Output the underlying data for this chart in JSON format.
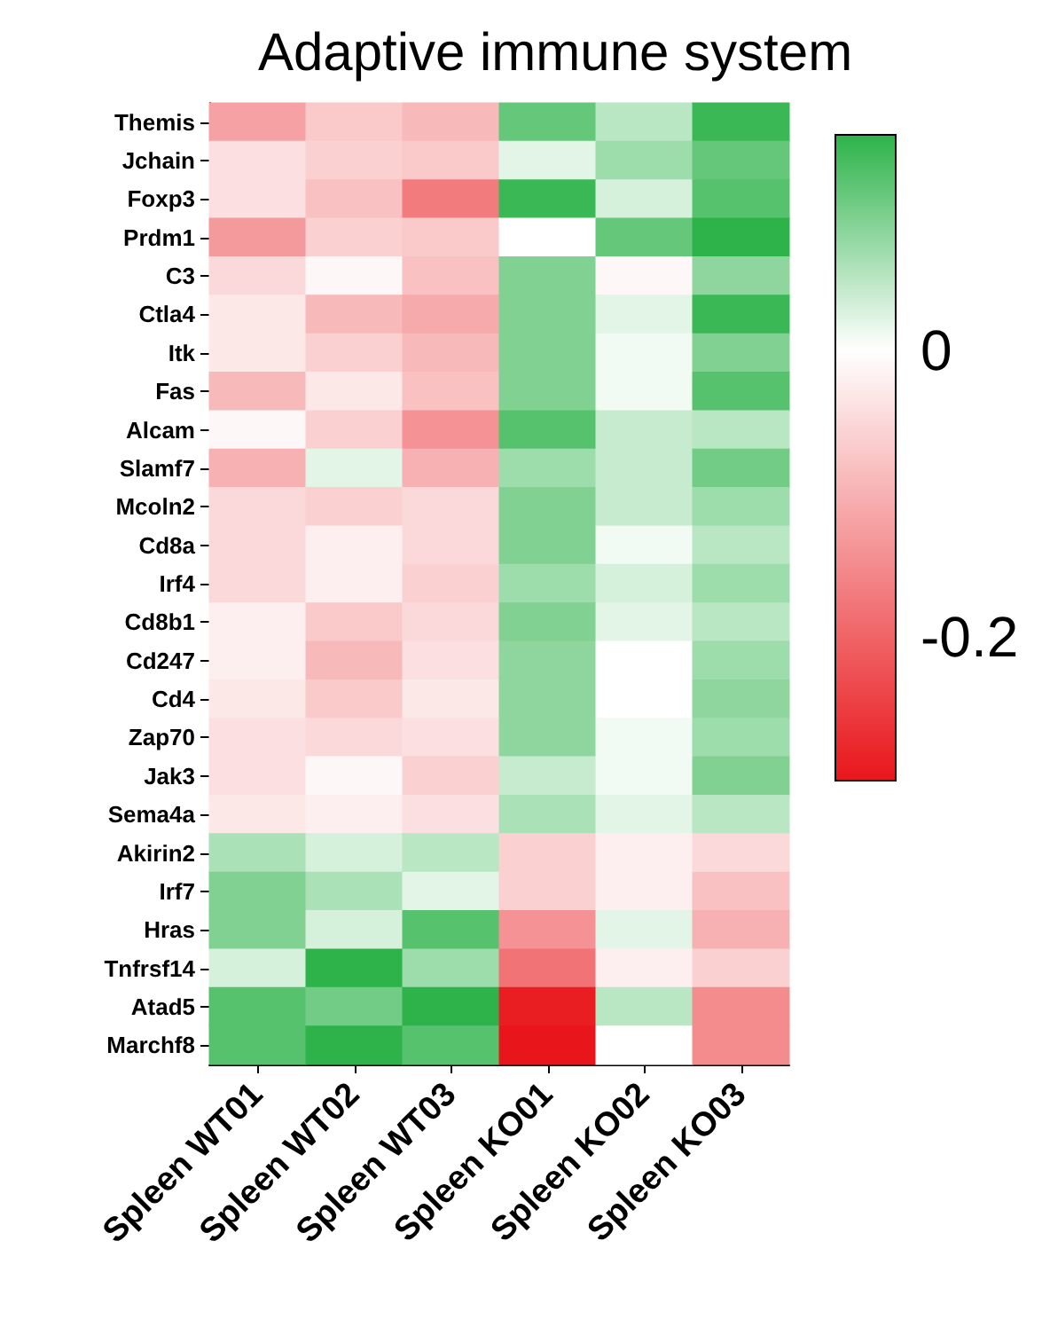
{
  "chart_data": {
    "type": "heatmap",
    "title": "Adaptive immune system",
    "categories": [
      "Spleen WT01",
      "Spleen WT02",
      "Spleen WT03",
      "Spleen KO01",
      "Spleen KO02",
      "Spleen KO03"
    ],
    "y_categories": [
      "Themis",
      "Jchain",
      "Foxp3",
      "Prdm1",
      "C3",
      "Ctla4",
      "Itk",
      "Fas",
      "Alcam",
      "Slamf7",
      "Mcoln2",
      "Cd8a",
      "Irf4",
      "Cd8b1",
      "Cd247",
      "Cd4",
      "Zap70",
      "Jak3",
      "Sema4a",
      "Akirin2",
      "Irf7",
      "Hras",
      "Tnfrsf14",
      "Atad5",
      "Marchf8"
    ],
    "cells": [
      [
        -0.12,
        -0.07,
        -0.09,
        0.11,
        0.05,
        0.14
      ],
      [
        -0.04,
        -0.06,
        -0.07,
        0.02,
        0.07,
        0.11
      ],
      [
        -0.04,
        -0.08,
        -0.17,
        0.14,
        0.03,
        0.12
      ],
      [
        -0.13,
        -0.06,
        -0.07,
        0.0,
        0.11,
        0.15
      ],
      [
        -0.05,
        -0.01,
        -0.08,
        0.09,
        -0.01,
        0.08
      ],
      [
        -0.03,
        -0.09,
        -0.11,
        0.09,
        0.02,
        0.14
      ],
      [
        -0.03,
        -0.06,
        -0.09,
        0.09,
        0.01,
        0.09
      ],
      [
        -0.09,
        -0.03,
        -0.08,
        0.09,
        0.01,
        0.12
      ],
      [
        -0.01,
        -0.06,
        -0.14,
        0.12,
        0.04,
        0.05
      ],
      [
        -0.1,
        0.02,
        -0.1,
        0.07,
        0.04,
        0.1
      ],
      [
        -0.05,
        -0.06,
        -0.05,
        0.09,
        0.04,
        0.07
      ],
      [
        -0.05,
        -0.02,
        -0.05,
        0.09,
        0.01,
        0.05
      ],
      [
        -0.05,
        -0.02,
        -0.06,
        0.07,
        0.03,
        0.07
      ],
      [
        -0.02,
        -0.07,
        -0.05,
        0.09,
        0.02,
        0.05
      ],
      [
        -0.02,
        -0.09,
        -0.04,
        0.08,
        0.0,
        0.07
      ],
      [
        -0.03,
        -0.07,
        -0.03,
        0.08,
        0.0,
        0.08
      ],
      [
        -0.04,
        -0.05,
        -0.04,
        0.08,
        0.01,
        0.07
      ],
      [
        -0.04,
        -0.01,
        -0.06,
        0.04,
        0.01,
        0.09
      ],
      [
        -0.03,
        -0.02,
        -0.04,
        0.06,
        0.02,
        0.05
      ],
      [
        0.06,
        0.03,
        0.05,
        -0.06,
        -0.02,
        -0.05
      ],
      [
        0.09,
        0.06,
        0.02,
        -0.06,
        -0.02,
        -0.08
      ],
      [
        0.09,
        0.03,
        0.12,
        -0.14,
        0.02,
        -0.1
      ],
      [
        0.03,
        0.15,
        0.07,
        -0.18,
        -0.02,
        -0.06
      ],
      [
        0.12,
        0.1,
        0.15,
        -0.29,
        0.05,
        -0.15
      ],
      [
        0.12,
        0.15,
        0.12,
        -0.3,
        0.0,
        -0.15
      ]
    ],
    "clim": [
      -0.3,
      0.15
    ],
    "cticks": [
      -0.2,
      0
    ]
  }
}
